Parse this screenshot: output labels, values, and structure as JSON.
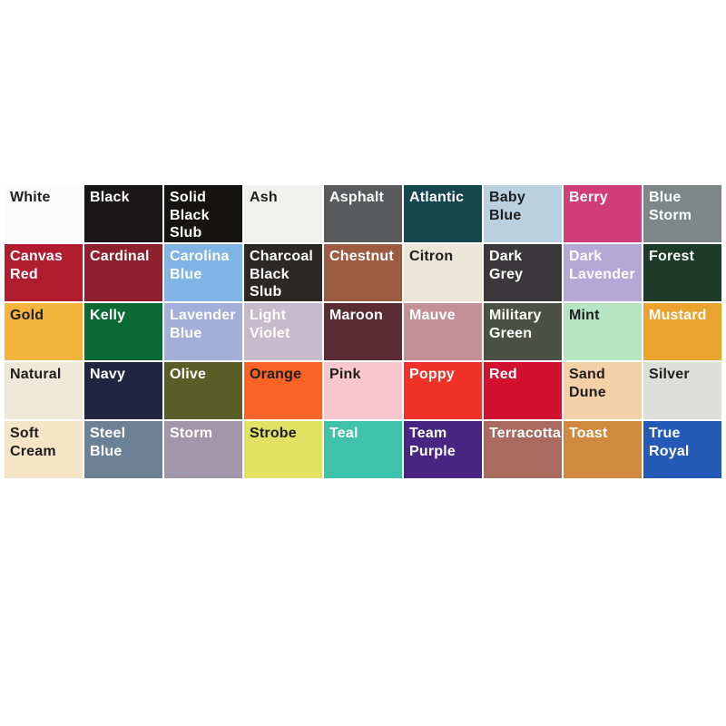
{
  "page": {
    "background_color": "#ffffff",
    "description": "Product color option swatch grid"
  },
  "swatch_grid": {
    "columns": 9,
    "swatches": [
      {
        "label": "White",
        "color": "#fcfcfd",
        "text_color": "#1e1e1e"
      },
      {
        "label": "Black",
        "color": "#1a1718",
        "text_color": "#ffffff"
      },
      {
        "label": "Solid Black Slub",
        "color": "#161313",
        "text_color": "#ffffff"
      },
      {
        "label": "Ash",
        "color": "#f1f1ef",
        "text_color": "#1e1e1e"
      },
      {
        "label": "Asphalt",
        "color": "#5a5b5d",
        "text_color": "#ffffff"
      },
      {
        "label": "Atlantic",
        "color": "#17464f",
        "text_color": "#ffffff"
      },
      {
        "label": "Baby Blue",
        "color": "#b9d0e0",
        "text_color": "#1e1e1e"
      },
      {
        "label": "Berry",
        "color": "#d03d77",
        "text_color": "#ffffff"
      },
      {
        "label": "Blue Storm",
        "color": "#7d8788",
        "text_color": "#ffffff"
      },
      {
        "label": "Canvas Red",
        "color": "#b11d2e",
        "text_color": "#ffffff"
      },
      {
        "label": "Cardinal",
        "color": "#8d202c",
        "text_color": "#ffffff"
      },
      {
        "label": "Carolina Blue",
        "color": "#80b4e4",
        "text_color": "#ffffff"
      },
      {
        "label": "Charcoal Black Slub",
        "color": "#2b2826",
        "text_color": "#ffffff"
      },
      {
        "label": "Chestnut",
        "color": "#9b5c42",
        "text_color": "#ffffff"
      },
      {
        "label": "Citron",
        "color": "#eae6d8",
        "text_color": "#1e1e1e"
      },
      {
        "label": "Dark Grey",
        "color": "#3a383b",
        "text_color": "#ffffff"
      },
      {
        "label": "Dark Lavender",
        "color": "#b3a9d6",
        "text_color": "#ffffff"
      },
      {
        "label": "Forest",
        "color": "#1d3b2b",
        "text_color": "#ffffff"
      },
      {
        "label": "Gold",
        "color": "#f5b53d",
        "text_color": "#1e1e1e"
      },
      {
        "label": "Kelly",
        "color": "#0b6936",
        "text_color": "#ffffff"
      },
      {
        "label": "Lavender Blue",
        "color": "#a3aed9",
        "text_color": "#ffffff"
      },
      {
        "label": "Light Violet",
        "color": "#c6bbcc",
        "text_color": "#ffffff"
      },
      {
        "label": "Maroon",
        "color": "#592c36",
        "text_color": "#ffffff"
      },
      {
        "label": "Mauve",
        "color": "#c29095",
        "text_color": "#ffffff"
      },
      {
        "label": "Military Green",
        "color": "#4c5243",
        "text_color": "#ffffff"
      },
      {
        "label": "Mint",
        "color": "#b6e5c4",
        "text_color": "#1e1e1e"
      },
      {
        "label": "Mustard",
        "color": "#eaa42d",
        "text_color": "#ffffff"
      },
      {
        "label": "Natural",
        "color": "#ede8d8",
        "text_color": "#1e1e1e"
      },
      {
        "label": "Navy",
        "color": "#212542",
        "text_color": "#ffffff"
      },
      {
        "label": "Olive",
        "color": "#595d26",
        "text_color": "#ffffff"
      },
      {
        "label": "Orange",
        "color": "#fa6325",
        "text_color": "#1e1e1e"
      },
      {
        "label": "Pink",
        "color": "#f8c7ce",
        "text_color": "#1e1e1e"
      },
      {
        "label": "Poppy",
        "color": "#f03126",
        "text_color": "#ffffff"
      },
      {
        "label": "Red",
        "color": "#d21131",
        "text_color": "#ffffff"
      },
      {
        "label": "Sand Dune",
        "color": "#f4d0a7",
        "text_color": "#1e1e1e"
      },
      {
        "label": "Silver",
        "color": "#dddddb",
        "text_color": "#1e1e1e"
      },
      {
        "label": "Soft Cream",
        "color": "#f5e4c5",
        "text_color": "#1e1e1e"
      },
      {
        "label": "Steel Blue",
        "color": "#6c8096",
        "text_color": "#ffffff"
      },
      {
        "label": "Storm",
        "color": "#a396aa",
        "text_color": "#ffffff"
      },
      {
        "label": "Strobe",
        "color": "#e1e164",
        "text_color": "#1e1e1e"
      },
      {
        "label": "Teal",
        "color": "#40c1aa",
        "text_color": "#ffffff"
      },
      {
        "label": "Team Purple",
        "color": "#472581",
        "text_color": "#ffffff"
      },
      {
        "label": "Terracotta",
        "color": "#a96a5f",
        "text_color": "#ffffff"
      },
      {
        "label": "Toast",
        "color": "#d0893e",
        "text_color": "#ffffff"
      },
      {
        "label": "True Royal",
        "color": "#2459b5",
        "text_color": "#ffffff"
      }
    ]
  }
}
